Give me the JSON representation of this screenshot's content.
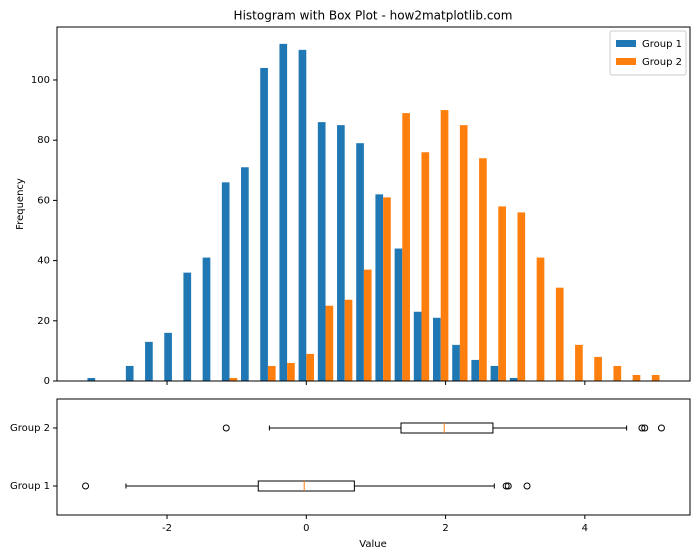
{
  "chart_data": [
    {
      "type": "histogram",
      "title": "Histogram with Box Plot - how2matplotlib.com",
      "ylabel": "Frequency",
      "bins": [
        -3.17,
        -2.894,
        -2.619,
        -2.343,
        -2.067,
        -1.792,
        -1.516,
        -1.24,
        -0.965,
        -0.689,
        -0.413,
        -0.138,
        0.138,
        0.414,
        0.689,
        0.965,
        1.241,
        1.516,
        1.792,
        2.068,
        2.343,
        2.619,
        2.895,
        3.17,
        3.446,
        3.722,
        3.997,
        4.273,
        4.549,
        4.824,
        5.1
      ],
      "series": [
        {
          "name": "Group 1",
          "color": "#1f77b4",
          "values": [
            1,
            0,
            5,
            13,
            16,
            36,
            41,
            66,
            71,
            104,
            112,
            110,
            86,
            85,
            79,
            62,
            44,
            23,
            21,
            12,
            7,
            5,
            1,
            0,
            0,
            0,
            0,
            0,
            0,
            0
          ]
        },
        {
          "name": "Group 2",
          "color": "#ff7f0e",
          "values": [
            0,
            0,
            0,
            0,
            0,
            0,
            0,
            1,
            0,
            5,
            6,
            9,
            25,
            27,
            37,
            61,
            89,
            76,
            90,
            85,
            74,
            58,
            56,
            41,
            31,
            12,
            8,
            5,
            2,
            2
          ]
        }
      ],
      "xlim": [
        -3.58,
        5.51
      ],
      "ylim": [
        0,
        117.6
      ],
      "yticks": [
        0,
        20,
        40,
        60,
        80,
        100
      ],
      "legend": "upper right"
    },
    {
      "type": "boxplot",
      "xlabel": "Value",
      "categories": [
        "Group 1",
        "Group 2"
      ],
      "boxes": [
        {
          "whislo": -2.59,
          "q1": -0.69,
          "med": -0.03,
          "q3": 0.69,
          "whishi": 2.7,
          "fliers": [
            -3.17,
            2.87,
            2.9,
            3.17
          ]
        },
        {
          "whislo": -0.53,
          "q1": 1.36,
          "med": 1.98,
          "q3": 2.68,
          "whishi": 4.6,
          "fliers": [
            -1.15,
            4.82,
            4.86,
            5.1
          ]
        }
      ],
      "box_color": "#000000",
      "median_color": "#ff7f0e",
      "xlim": [
        -3.58,
        5.51
      ],
      "xticks": [
        -2,
        0,
        2,
        4
      ]
    }
  ]
}
